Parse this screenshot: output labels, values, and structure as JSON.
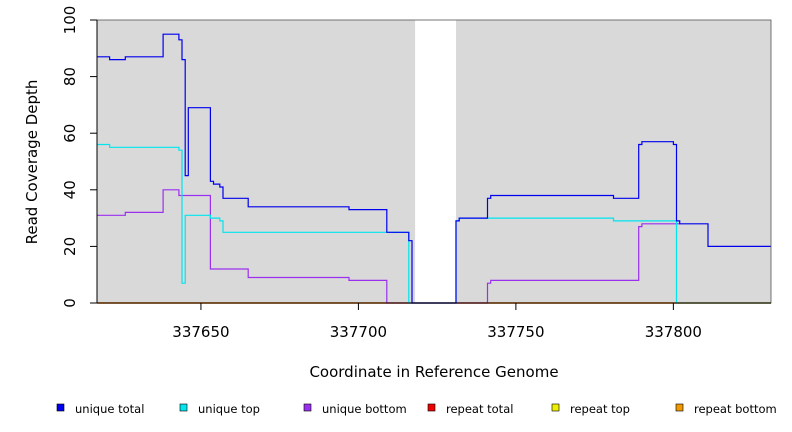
{
  "chart_data": {
    "type": "line",
    "title": "",
    "xlabel": "Coordinate in Reference Genome",
    "ylabel": "Read Coverage Depth",
    "xlim": [
      337617,
      337831
    ],
    "ylim": [
      0,
      100
    ],
    "x_ticks": [
      337650,
      337700,
      337750,
      337800
    ],
    "x_tick_labels": [
      "337650",
      "337700",
      "337750",
      "337800"
    ],
    "y_ticks": [
      0,
      20,
      40,
      60,
      80,
      100
    ],
    "y_tick_labels": [
      "0",
      "20",
      "40",
      "60",
      "80",
      "100"
    ],
    "shaded_regions": [
      [
        337617,
        337718
      ],
      [
        337731,
        337831
      ]
    ],
    "legend_position": "bottom",
    "series": [
      {
        "name": "unique total",
        "color": "#0000ee",
        "points": [
          [
            337617,
            87
          ],
          [
            337621,
            87
          ],
          [
            337621,
            86
          ],
          [
            337626,
            86
          ],
          [
            337626,
            87
          ],
          [
            337638,
            87
          ],
          [
            337638,
            95
          ],
          [
            337643,
            95
          ],
          [
            337643,
            93
          ],
          [
            337644,
            93
          ],
          [
            337644,
            86
          ],
          [
            337645,
            86
          ],
          [
            337645,
            45
          ],
          [
            337646,
            45
          ],
          [
            337646,
            69
          ],
          [
            337653,
            69
          ],
          [
            337653,
            43
          ],
          [
            337654,
            43
          ],
          [
            337654,
            42
          ],
          [
            337656,
            42
          ],
          [
            337656,
            41
          ],
          [
            337657,
            41
          ],
          [
            337657,
            37
          ],
          [
            337665,
            37
          ],
          [
            337665,
            34
          ],
          [
            337697,
            34
          ],
          [
            337697,
            33
          ],
          [
            337709,
            33
          ],
          [
            337709,
            25
          ],
          [
            337716,
            25
          ],
          [
            337716,
            22
          ],
          [
            337717,
            22
          ],
          [
            337717,
            0
          ],
          [
            337731,
            0
          ],
          [
            337731,
            29
          ],
          [
            337732,
            29
          ],
          [
            337732,
            30
          ],
          [
            337741,
            30
          ],
          [
            337741,
            37
          ],
          [
            337742,
            37
          ],
          [
            337742,
            38
          ],
          [
            337781,
            38
          ],
          [
            337781,
            37
          ],
          [
            337789,
            37
          ],
          [
            337789,
            56
          ],
          [
            337790,
            56
          ],
          [
            337790,
            57
          ],
          [
            337800,
            57
          ],
          [
            337800,
            56
          ],
          [
            337801,
            56
          ],
          [
            337801,
            29
          ],
          [
            337802,
            29
          ],
          [
            337802,
            28
          ],
          [
            337811,
            28
          ],
          [
            337811,
            20
          ],
          [
            337831,
            20
          ]
        ]
      },
      {
        "name": "unique top",
        "color": "#00e5ee",
        "points": [
          [
            337617,
            56
          ],
          [
            337621,
            56
          ],
          [
            337621,
            55
          ],
          [
            337643,
            55
          ],
          [
            337643,
            54
          ],
          [
            337644,
            54
          ],
          [
            337644,
            7
          ],
          [
            337645,
            7
          ],
          [
            337645,
            31
          ],
          [
            337653,
            31
          ],
          [
            337653,
            30
          ],
          [
            337656,
            30
          ],
          [
            337656,
            29
          ],
          [
            337657,
            29
          ],
          [
            337657,
            25
          ],
          [
            337716,
            25
          ],
          [
            337716,
            0
          ],
          [
            337731,
            0
          ],
          [
            337731,
            29
          ],
          [
            337732,
            29
          ],
          [
            337732,
            30
          ],
          [
            337781,
            30
          ],
          [
            337781,
            29
          ],
          [
            337801,
            29
          ],
          [
            337801,
            0
          ],
          [
            337831,
            0
          ]
        ]
      },
      {
        "name": "unique bottom",
        "color": "#9a30ee",
        "points": [
          [
            337617,
            31
          ],
          [
            337626,
            31
          ],
          [
            337626,
            32
          ],
          [
            337638,
            32
          ],
          [
            337638,
            40
          ],
          [
            337643,
            40
          ],
          [
            337643,
            38
          ],
          [
            337653,
            38
          ],
          [
            337653,
            12
          ],
          [
            337665,
            12
          ],
          [
            337665,
            9
          ],
          [
            337697,
            9
          ],
          [
            337697,
            8
          ],
          [
            337709,
            8
          ],
          [
            337709,
            0
          ],
          [
            337741,
            0
          ],
          [
            337741,
            7
          ],
          [
            337742,
            7
          ],
          [
            337742,
            8
          ],
          [
            337789,
            8
          ],
          [
            337789,
            27
          ],
          [
            337790,
            27
          ],
          [
            337790,
            28
          ],
          [
            337802,
            28
          ],
          [
            337802,
            28
          ]
        ]
      },
      {
        "name": "repeat total",
        "color": "#ee0000",
        "points": [
          [
            337617,
            0
          ],
          [
            337831,
            0
          ]
        ]
      },
      {
        "name": "repeat top",
        "color": "#eeee00",
        "points": [
          [
            337617,
            0
          ],
          [
            337831,
            0
          ]
        ]
      },
      {
        "name": "repeat bottom",
        "color": "#ee9a00",
        "points": [
          [
            337617,
            0
          ],
          [
            337831,
            0
          ]
        ]
      }
    ]
  }
}
